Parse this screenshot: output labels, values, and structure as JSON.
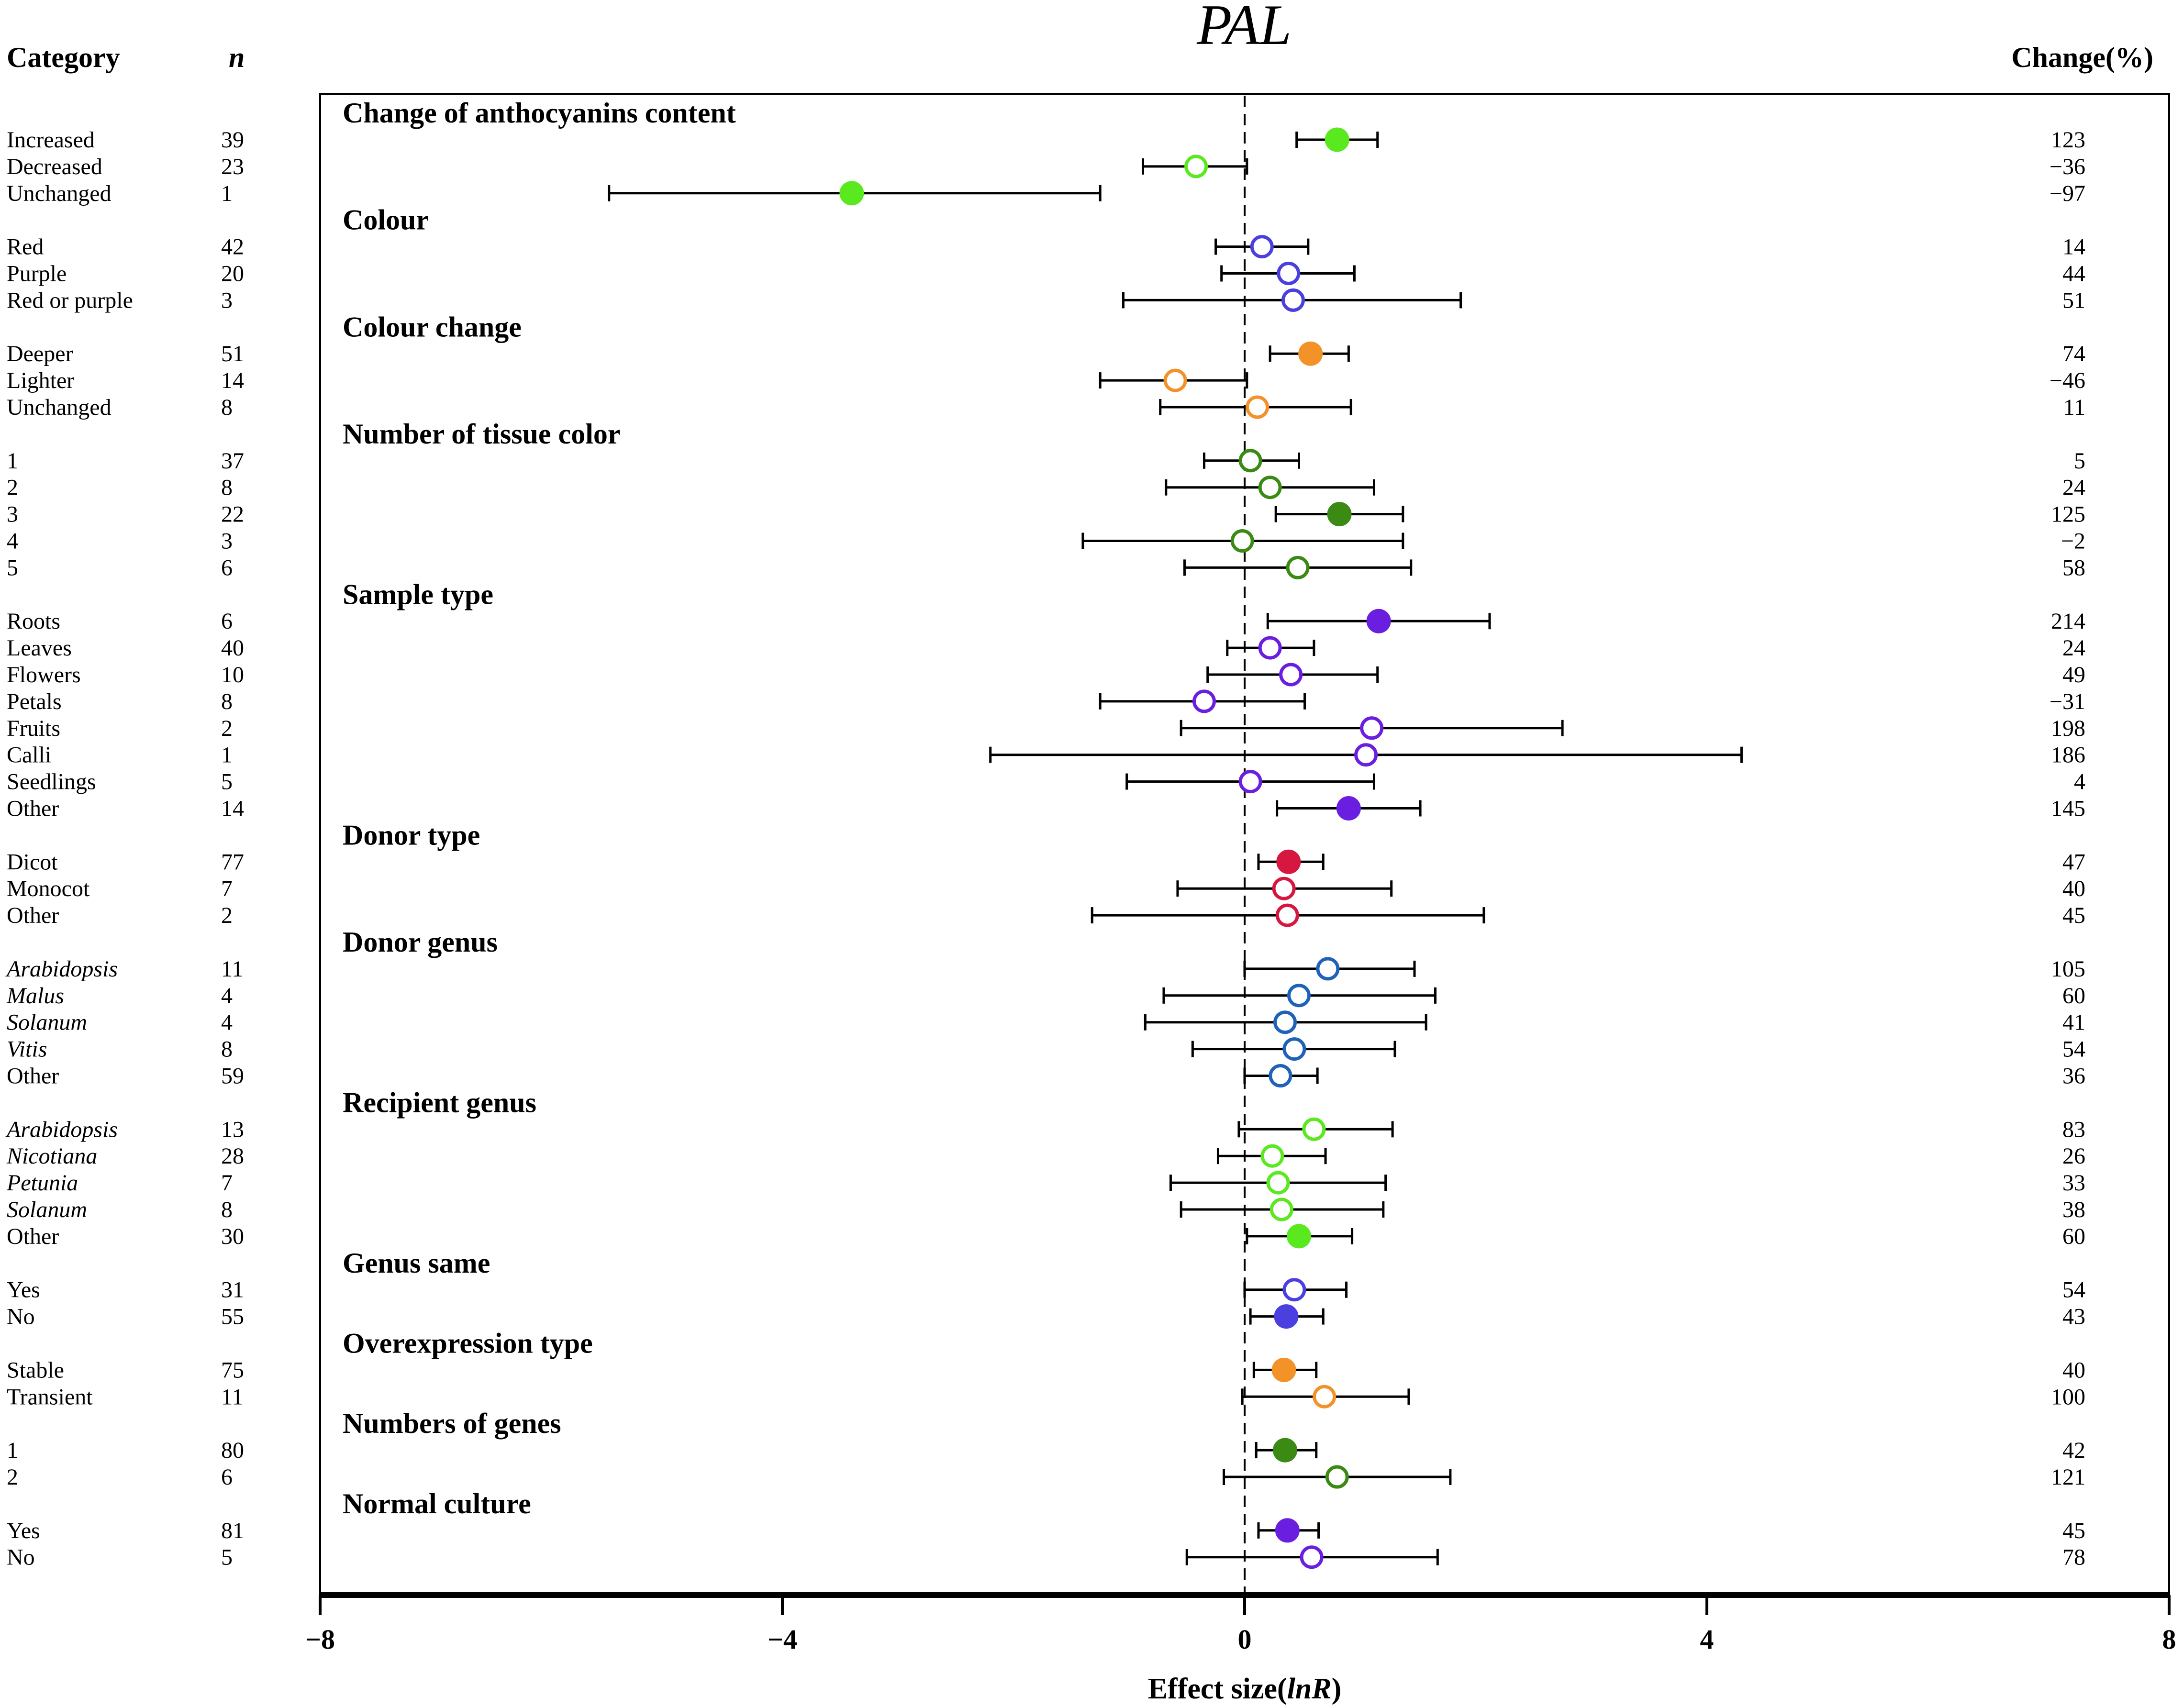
{
  "chart_data": {
    "type": "forest",
    "title": "PAL",
    "xlabel_prefix": "Effect size(",
    "xlabel_var": "lnR",
    "xlabel_suffix": ")",
    "xlim": [
      -8,
      8
    ],
    "xticks": [
      -8,
      -4,
      0,
      4,
      8
    ],
    "xtick_labels": [
      "−8",
      "−4",
      "0",
      "4",
      "8"
    ],
    "reference_line": 0,
    "column_headers": {
      "category": "Category",
      "n": "n",
      "change": "Change(%)"
    },
    "groups": [
      {
        "name": "Change of anthocyanins content",
        "color": "#5ae81f",
        "rows": [
          {
            "label": "Increased",
            "italic": false,
            "n": "39",
            "change": "123",
            "est": 0.8,
            "lo": 0.45,
            "hi": 1.15,
            "filled": true
          },
          {
            "label": "Decreased",
            "italic": false,
            "n": "23",
            "change": "−36",
            "est": -0.42,
            "lo": -0.88,
            "hi": 0.02,
            "filled": false
          },
          {
            "label": "Unchanged",
            "italic": false,
            "n": "1",
            "change": "−97",
            "est": -3.4,
            "lo": -5.5,
            "hi": -1.25,
            "filled": true
          }
        ]
      },
      {
        "name": "Colour",
        "color": "#4b3fe0",
        "rows": [
          {
            "label": "Red",
            "italic": false,
            "n": "42",
            "change": "14",
            "est": 0.15,
            "lo": -0.25,
            "hi": 0.55,
            "filled": false
          },
          {
            "label": "Purple",
            "italic": false,
            "n": "20",
            "change": "44",
            "est": 0.38,
            "lo": -0.2,
            "hi": 0.95,
            "filled": false
          },
          {
            "label": "Red or purple",
            "italic": false,
            "n": "3",
            "change": "51",
            "est": 0.42,
            "lo": -1.05,
            "hi": 1.87,
            "filled": false
          }
        ]
      },
      {
        "name": "Colour change",
        "color": "#f4922a",
        "rows": [
          {
            "label": "Deeper",
            "italic": false,
            "n": "51",
            "change": "74",
            "est": 0.57,
            "lo": 0.22,
            "hi": 0.9,
            "filled": true
          },
          {
            "label": "Lighter",
            "italic": false,
            "n": "14",
            "change": "−46",
            "est": -0.6,
            "lo": -1.25,
            "hi": 0.02,
            "filled": false
          },
          {
            "label": "Unchanged",
            "italic": false,
            "n": "8",
            "change": "11",
            "est": 0.11,
            "lo": -0.73,
            "hi": 0.92,
            "filled": false
          }
        ]
      },
      {
        "name": "Number of tissue color",
        "color": "#3a8a14",
        "rows": [
          {
            "label": "1",
            "italic": false,
            "n": "37",
            "change": "5",
            "est": 0.05,
            "lo": -0.35,
            "hi": 0.47,
            "filled": false
          },
          {
            "label": "2",
            "italic": false,
            "n": "8",
            "change": "24",
            "est": 0.22,
            "lo": -0.68,
            "hi": 1.12,
            "filled": false
          },
          {
            "label": "3",
            "italic": false,
            "n": "22",
            "change": "125",
            "est": 0.82,
            "lo": 0.27,
            "hi": 1.37,
            "filled": true
          },
          {
            "label": "4",
            "italic": false,
            "n": "3",
            "change": "−2",
            "est": -0.02,
            "lo": -1.4,
            "hi": 1.37,
            "filled": false
          },
          {
            "label": "5",
            "italic": false,
            "n": "6",
            "change": "58",
            "est": 0.46,
            "lo": -0.52,
            "hi": 1.44,
            "filled": false
          }
        ]
      },
      {
        "name": "Sample type",
        "color": "#6a1fe0",
        "rows": [
          {
            "label": "Roots",
            "italic": false,
            "n": "6",
            "change": "214",
            "est": 1.16,
            "lo": 0.2,
            "hi": 2.12,
            "filled": true
          },
          {
            "label": "Leaves",
            "italic": false,
            "n": "40",
            "change": "24",
            "est": 0.22,
            "lo": -0.15,
            "hi": 0.6,
            "filled": false
          },
          {
            "label": "Flowers",
            "italic": false,
            "n": "10",
            "change": "49",
            "est": 0.4,
            "lo": -0.32,
            "hi": 1.15,
            "filled": false
          },
          {
            "label": "Petals",
            "italic": false,
            "n": "8",
            "change": "−31",
            "est": -0.35,
            "lo": -1.25,
            "hi": 0.52,
            "filled": false
          },
          {
            "label": "Fruits",
            "italic": false,
            "n": "2",
            "change": "198",
            "est": 1.1,
            "lo": -0.55,
            "hi": 2.75,
            "filled": false
          },
          {
            "label": "Calli",
            "italic": false,
            "n": "1",
            "change": "186",
            "est": 1.05,
            "lo": -2.2,
            "hi": 4.3,
            "filled": false
          },
          {
            "label": "Seedlings",
            "italic": false,
            "n": "5",
            "change": "4",
            "est": 0.05,
            "lo": -1.02,
            "hi": 1.12,
            "filled": false
          },
          {
            "label": "Other",
            "italic": false,
            "n": "14",
            "change": "145",
            "est": 0.9,
            "lo": 0.28,
            "hi": 1.52,
            "filled": true
          }
        ]
      },
      {
        "name": "Donor type",
        "color": "#d6173f",
        "rows": [
          {
            "label": "Dicot",
            "italic": false,
            "n": "77",
            "change": "47",
            "est": 0.38,
            "lo": 0.12,
            "hi": 0.68,
            "filled": true
          },
          {
            "label": "Monocot",
            "italic": false,
            "n": "7",
            "change": "40",
            "est": 0.34,
            "lo": -0.58,
            "hi": 1.27,
            "filled": false
          },
          {
            "label": "Other",
            "italic": false,
            "n": "2",
            "change": "45",
            "est": 0.37,
            "lo": -1.32,
            "hi": 2.07,
            "filled": false
          }
        ]
      },
      {
        "name": "Donor genus",
        "color": "#1f62b8",
        "rows": [
          {
            "label": "Arabidopsis",
            "italic": true,
            "n": "11",
            "change": "105",
            "est": 0.72,
            "lo": 0.0,
            "hi": 1.47,
            "filled": false
          },
          {
            "label": "Malus",
            "italic": true,
            "n": "4",
            "change": "60",
            "est": 0.47,
            "lo": -0.7,
            "hi": 1.65,
            "filled": false
          },
          {
            "label": "Solanum",
            "italic": true,
            "n": "4",
            "change": "41",
            "est": 0.35,
            "lo": -0.86,
            "hi": 1.57,
            "filled": false
          },
          {
            "label": "Vitis",
            "italic": true,
            "n": "8",
            "change": "54",
            "est": 0.43,
            "lo": -0.45,
            "hi": 1.3,
            "filled": false
          },
          {
            "label": "Other",
            "italic": false,
            "n": "59",
            "change": "36",
            "est": 0.31,
            "lo": 0.0,
            "hi": 0.63,
            "filled": false
          }
        ]
      },
      {
        "name": "Recipient genus",
        "color": "#5ae81f",
        "rows": [
          {
            "label": "Arabidopsis",
            "italic": true,
            "n": "13",
            "change": "83",
            "est": 0.6,
            "lo": -0.05,
            "hi": 1.28,
            "filled": false
          },
          {
            "label": "Nicotiana",
            "italic": true,
            "n": "28",
            "change": "26",
            "est": 0.24,
            "lo": -0.23,
            "hi": 0.7,
            "filled": false
          },
          {
            "label": "Petunia",
            "italic": true,
            "n": "7",
            "change": "33",
            "est": 0.29,
            "lo": -0.64,
            "hi": 1.22,
            "filled": false
          },
          {
            "label": "Solanum",
            "italic": true,
            "n": "8",
            "change": "38",
            "est": 0.32,
            "lo": -0.55,
            "hi": 1.2,
            "filled": false
          },
          {
            "label": "Other",
            "italic": false,
            "n": "30",
            "change": "60",
            "est": 0.47,
            "lo": 0.02,
            "hi": 0.93,
            "filled": true
          }
        ]
      },
      {
        "name": "Genus same",
        "color": "#4b3fe0",
        "rows": [
          {
            "label": "Yes",
            "italic": false,
            "n": "31",
            "change": "54",
            "est": 0.43,
            "lo": 0.0,
            "hi": 0.88,
            "filled": false
          },
          {
            "label": "No",
            "italic": false,
            "n": "55",
            "change": "43",
            "est": 0.36,
            "lo": 0.05,
            "hi": 0.68,
            "filled": true
          }
        ]
      },
      {
        "name": "Overexpression type",
        "color": "#f4922a",
        "rows": [
          {
            "label": "Stable",
            "italic": false,
            "n": "75",
            "change": "40",
            "est": 0.34,
            "lo": 0.08,
            "hi": 0.62,
            "filled": true
          },
          {
            "label": "Transient",
            "italic": false,
            "n": "11",
            "change": "100",
            "est": 0.69,
            "lo": -0.02,
            "hi": 1.42,
            "filled": false
          }
        ]
      },
      {
        "name": "Numbers of genes",
        "color": "#3a8a14",
        "rows": [
          {
            "label": "1",
            "italic": false,
            "n": "80",
            "change": "42",
            "est": 0.35,
            "lo": 0.1,
            "hi": 0.62,
            "filled": true
          },
          {
            "label": "2",
            "italic": false,
            "n": "6",
            "change": "121",
            "est": 0.8,
            "lo": -0.18,
            "hi": 1.78,
            "filled": false
          }
        ]
      },
      {
        "name": "Normal culture",
        "color": "#6a1fe0",
        "rows": [
          {
            "label": "Yes",
            "italic": false,
            "n": "81",
            "change": "45",
            "est": 0.37,
            "lo": 0.12,
            "hi": 0.64,
            "filled": true
          },
          {
            "label": "No",
            "italic": false,
            "n": "5",
            "change": "78",
            "est": 0.58,
            "lo": -0.5,
            "hi": 1.67,
            "filled": false
          }
        ]
      }
    ]
  }
}
